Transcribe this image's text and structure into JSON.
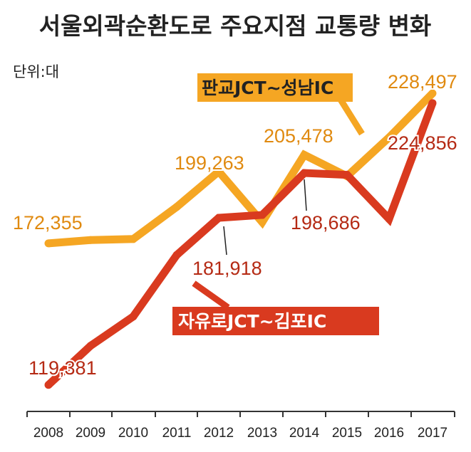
{
  "colors": {
    "series_1": "#f5a623",
    "series_2": "#d93a1f",
    "label_1": "#e08a10",
    "label_2": "#b52a14",
    "legend_1_bg": "#f5a623",
    "legend_1_text": "#222222",
    "legend_2_bg": "#d93a1f",
    "legend_2_text": "#ffffff",
    "axis": "#333333"
  },
  "chart_data": {
    "type": "line",
    "title": "서울외곽순환도로 주요지점 교통량 변화",
    "unit_label": "단위:대",
    "x": [
      "2008",
      "2009",
      "2010",
      "2011",
      "2012",
      "2013",
      "2014",
      "2015",
      "2016",
      "2017"
    ],
    "ylim": [
      110000,
      232000
    ],
    "grid": false,
    "legend": "inline",
    "series": [
      {
        "name": "판교JCT~성남IC",
        "values": [
          172355,
          173600,
          174000,
          186000,
          199263,
          180300,
          205478,
          197500,
          212000,
          228497
        ],
        "labels": [
          {
            "x": "2008",
            "text": "172,355"
          },
          {
            "x": "2012",
            "text": "199,263"
          },
          {
            "x": "2014",
            "text": "205,478"
          },
          {
            "x": "2017",
            "text": "228,497"
          }
        ]
      },
      {
        "name": "자유로JCT~김포IC",
        "values": [
          119381,
          134000,
          145000,
          168000,
          181918,
          183000,
          198686,
          198000,
          181500,
          224856
        ],
        "labels": [
          {
            "x": "2008",
            "text": "119,381"
          },
          {
            "x": "2012",
            "text": "181,918"
          },
          {
            "x": "2014",
            "text": "198,686"
          },
          {
            "x": "2017",
            "text": "224,856"
          }
        ]
      }
    ]
  }
}
